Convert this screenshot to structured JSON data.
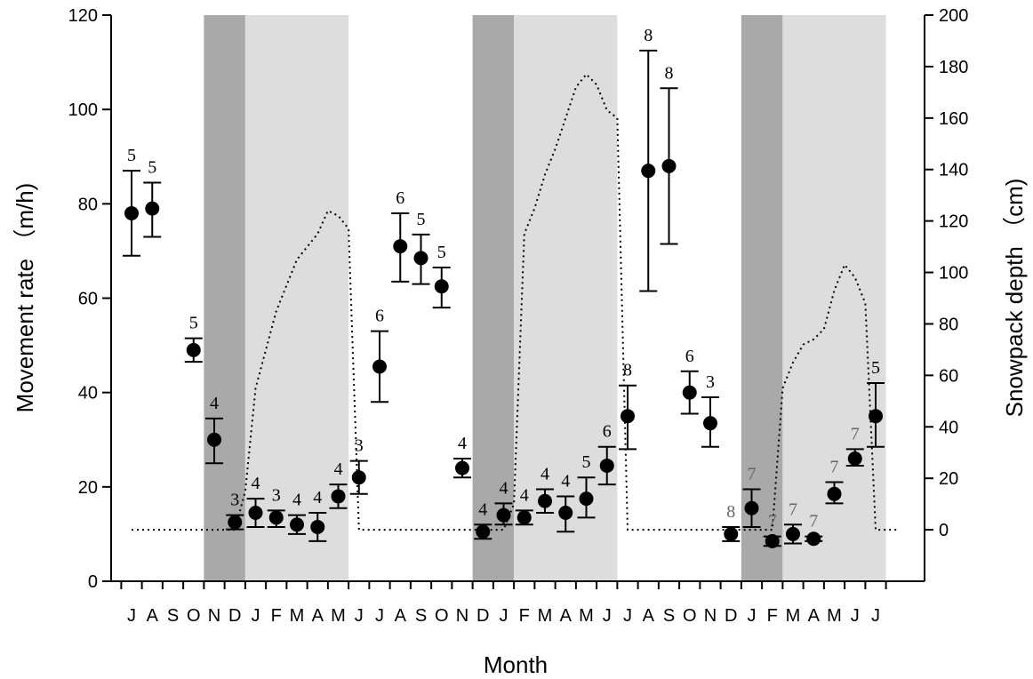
{
  "chart_data": {
    "type": "scatter",
    "title": "",
    "xlabel": "Month",
    "ylabel_left": "Movement rate （m/h)",
    "ylabel_right": "Snowpack depth （cm)",
    "ylim_left": [
      0,
      120
    ],
    "ylim_right": [
      -20,
      200
    ],
    "yticks_left": [
      "0",
      "20",
      "40",
      "60",
      "80",
      "100",
      "120"
    ],
    "yticks_right": [
      "0",
      "20",
      "40",
      "60",
      "80",
      "100",
      "120",
      "140",
      "160",
      "180",
      "200"
    ],
    "yticks_right_values": [
      0,
      20,
      40,
      60,
      80,
      100,
      120,
      140,
      160,
      180,
      200
    ],
    "month_labels": [
      "J",
      "A",
      "S",
      "O",
      "N",
      "D",
      "J",
      "F",
      "M",
      "A",
      "M",
      "J",
      "J",
      "A",
      "S",
      "O",
      "N",
      "D",
      "J",
      "F",
      "M",
      "A",
      "M",
      "J",
      "J",
      "A",
      "S",
      "O",
      "N",
      "D",
      "J",
      "F",
      "M",
      "A",
      "M",
      "J",
      "J"
    ],
    "grid": false,
    "shaded_periods": [
      {
        "shade": "dark",
        "start": 4,
        "end": 6
      },
      {
        "shade": "light",
        "start": 6,
        "end": 11
      },
      {
        "shade": "dark",
        "start": 17,
        "end": 19
      },
      {
        "shade": "light",
        "start": 19,
        "end": 24
      },
      {
        "shade": "dark",
        "start": 30,
        "end": 32
      },
      {
        "shade": "light",
        "start": 32,
        "end": 37
      }
    ],
    "points": [
      {
        "x": 0,
        "y": 78,
        "lo": 69,
        "hi": 87,
        "n": "5"
      },
      {
        "x": 1,
        "y": 79,
        "lo": 73,
        "hi": 84.5,
        "n": "5"
      },
      {
        "x": 3,
        "y": 49,
        "lo": 46.5,
        "hi": 51.5,
        "n": "5"
      },
      {
        "x": 4,
        "y": 30,
        "lo": 25,
        "hi": 34.5,
        "n": "4"
      },
      {
        "x": 5,
        "y": 12.5,
        "lo": 11,
        "hi": 14,
        "n": "3"
      },
      {
        "x": 6,
        "y": 14.5,
        "lo": 11.5,
        "hi": 17.5,
        "n": "4"
      },
      {
        "x": 7,
        "y": 13.5,
        "lo": 11.5,
        "hi": 15,
        "n": "3"
      },
      {
        "x": 8,
        "y": 12,
        "lo": 10,
        "hi": 14,
        "n": "4"
      },
      {
        "x": 9,
        "y": 11.5,
        "lo": 8.5,
        "hi": 14.5,
        "n": "4"
      },
      {
        "x": 10,
        "y": 18,
        "lo": 15.5,
        "hi": 20.5,
        "n": "4"
      },
      {
        "x": 11,
        "y": 22,
        "lo": 18.5,
        "hi": 25.5,
        "n": "3"
      },
      {
        "x": 12,
        "y": 45.5,
        "lo": 38,
        "hi": 53,
        "n": "6"
      },
      {
        "x": 13,
        "y": 71,
        "lo": 63.5,
        "hi": 78,
        "n": "6"
      },
      {
        "x": 14,
        "y": 68.5,
        "lo": 63,
        "hi": 73.5,
        "n": "5"
      },
      {
        "x": 15,
        "y": 62.5,
        "lo": 58,
        "hi": 66.5,
        "n": "5"
      },
      {
        "x": 16,
        "y": 24,
        "lo": 22,
        "hi": 26,
        "n": "4"
      },
      {
        "x": 17,
        "y": 10.5,
        "lo": 9,
        "hi": 12,
        "n": "4"
      },
      {
        "x": 18,
        "y": 14,
        "lo": 12,
        "hi": 16.5,
        "n": "4"
      },
      {
        "x": 19,
        "y": 13.5,
        "lo": 12,
        "hi": 15,
        "n": "4"
      },
      {
        "x": 20,
        "y": 17,
        "lo": 14.5,
        "hi": 19.5,
        "n": "4"
      },
      {
        "x": 21,
        "y": 14.5,
        "lo": 10.5,
        "hi": 18,
        "n": "4"
      },
      {
        "x": 22,
        "y": 17.5,
        "lo": 13.5,
        "hi": 22,
        "n": "5"
      },
      {
        "x": 23,
        "y": 24.5,
        "lo": 20.5,
        "hi": 28.5,
        "n": "6"
      },
      {
        "x": 24,
        "y": 35,
        "lo": 28,
        "hi": 41.5,
        "n": "8"
      },
      {
        "x": 25,
        "y": 87,
        "lo": 61.5,
        "hi": 112.5,
        "n": "8"
      },
      {
        "x": 26,
        "y": 88,
        "lo": 71.5,
        "hi": 104.5,
        "n": "8"
      },
      {
        "x": 27,
        "y": 40,
        "lo": 35.5,
        "hi": 44.5,
        "n": "6"
      },
      {
        "x": 28,
        "y": 33.5,
        "lo": 28.5,
        "hi": 39,
        "n": "3"
      },
      {
        "x": 29,
        "y": 10,
        "lo": 8.5,
        "hi": 11.5,
        "n": "8"
      },
      {
        "x": 30,
        "y": 15.5,
        "lo": 11.5,
        "hi": 19.5,
        "n": "7"
      },
      {
        "x": 31,
        "y": 8.5,
        "lo": 7.5,
        "hi": 9.5,
        "n": "7"
      },
      {
        "x": 32,
        "y": 10,
        "lo": 8,
        "hi": 12,
        "n": "7"
      },
      {
        "x": 33,
        "y": 9,
        "lo": 8.5,
        "hi": 9.5,
        "n": "7"
      },
      {
        "x": 34,
        "y": 18.5,
        "lo": 16.5,
        "hi": 21,
        "n": "7"
      },
      {
        "x": 35,
        "y": 26,
        "lo": 24.5,
        "hi": 28,
        "n": "7"
      },
      {
        "x": 36,
        "y": 35,
        "lo": 28.5,
        "hi": 42,
        "n": "5"
      }
    ],
    "snowpack_series": [
      {
        "x": 0,
        "y": 0
      },
      {
        "x": 5,
        "y": 0
      },
      {
        "x": 5.5,
        "y": 15
      },
      {
        "x": 6,
        "y": 55
      },
      {
        "x": 7,
        "y": 85
      },
      {
        "x": 8,
        "y": 105
      },
      {
        "x": 9,
        "y": 115
      },
      {
        "x": 9.5,
        "y": 124
      },
      {
        "x": 10,
        "y": 122
      },
      {
        "x": 10.5,
        "y": 117
      },
      {
        "x": 11,
        "y": 0
      },
      {
        "x": 18,
        "y": 0
      },
      {
        "x": 18.5,
        "y": 10
      },
      {
        "x": 19,
        "y": 115
      },
      {
        "x": 19.5,
        "y": 125
      },
      {
        "x": 20,
        "y": 138
      },
      {
        "x": 20.5,
        "y": 148
      },
      {
        "x": 21,
        "y": 160
      },
      {
        "x": 21.5,
        "y": 172
      },
      {
        "x": 22,
        "y": 177
      },
      {
        "x": 22.5,
        "y": 173
      },
      {
        "x": 23,
        "y": 163
      },
      {
        "x": 23.5,
        "y": 160
      },
      {
        "x": 24,
        "y": 0
      },
      {
        "x": 31,
        "y": 0
      },
      {
        "x": 31.5,
        "y": 55
      },
      {
        "x": 32,
        "y": 65
      },
      {
        "x": 32.5,
        "y": 72
      },
      {
        "x": 33,
        "y": 74
      },
      {
        "x": 33.5,
        "y": 78
      },
      {
        "x": 34,
        "y": 93
      },
      {
        "x": 34.5,
        "y": 103
      },
      {
        "x": 35,
        "y": 98
      },
      {
        "x": 35.5,
        "y": 88
      },
      {
        "x": 36,
        "y": 0
      },
      {
        "x": 37,
        "y": 0
      }
    ],
    "colors": {
      "dark_shade": "#a9a9a9",
      "light_shade": "#dddddd",
      "marker": "#000000"
    }
  }
}
